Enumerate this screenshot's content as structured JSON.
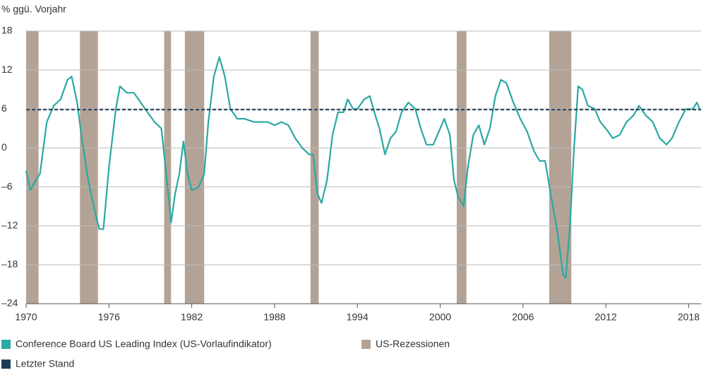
{
  "chart_data": {
    "type": "line",
    "y_axis_label": "% ggü. Vorjahr",
    "xlim": [
      1970,
      2018.9
    ],
    "xticks": [
      1970,
      1976,
      1982,
      1988,
      1994,
      2000,
      2006,
      2012,
      2018
    ],
    "ylim": [
      -24,
      18
    ],
    "yticks": [
      {
        "value": -24,
        "label": "–24"
      },
      {
        "value": -18,
        "label": "–18"
      },
      {
        "value": -12,
        "label": "–12"
      },
      {
        "value": -6,
        "label": "–6"
      },
      0,
      6,
      12,
      18
    ],
    "grid": true,
    "series": [
      {
        "name": "Conference Board US Leading Index (US-Vorlaufindikator)",
        "color": "#2aa8a3",
        "x": [
          1970.0,
          1970.3,
          1970.7,
          1971.0,
          1971.5,
          1972.0,
          1972.5,
          1973.0,
          1973.3,
          1973.7,
          1974.0,
          1974.5,
          1975.0,
          1975.3,
          1975.6,
          1976.0,
          1976.5,
          1976.8,
          1977.3,
          1977.8,
          1978.3,
          1978.8,
          1979.3,
          1979.8,
          1980.2,
          1980.5,
          1980.8,
          1981.1,
          1981.4,
          1981.7,
          1982.0,
          1982.5,
          1982.9,
          1983.2,
          1983.6,
          1984.0,
          1984.4,
          1984.8,
          1985.3,
          1985.8,
          1986.5,
          1987.5,
          1988.0,
          1988.5,
          1989.0,
          1989.5,
          1990.0,
          1990.5,
          1990.8,
          1991.1,
          1991.4,
          1991.8,
          1992.2,
          1992.6,
          1993.0,
          1993.3,
          1993.7,
          1994.0,
          1994.5,
          1994.9,
          1995.3,
          1995.6,
          1996.0,
          1996.4,
          1996.8,
          1997.2,
          1997.7,
          1998.2,
          1998.6,
          1999.0,
          1999.5,
          2000.0,
          2000.3,
          2000.7,
          2001.0,
          2001.3,
          2001.7,
          2002.0,
          2002.4,
          2002.8,
          2003.2,
          2003.6,
          2004.0,
          2004.4,
          2004.8,
          2005.3,
          2005.8,
          2006.3,
          2006.8,
          2007.2,
          2007.6,
          2008.0,
          2008.5,
          2008.9,
          2009.1,
          2009.4,
          2009.7,
          2010.0,
          2010.3,
          2010.7,
          2011.2,
          2011.6,
          2012.0,
          2012.5,
          2013.0,
          2013.5,
          2014.0,
          2014.4,
          2014.9,
          2015.4,
          2015.9,
          2016.4,
          2016.8,
          2017.3,
          2017.8,
          2018.3,
          2018.6,
          2018.8
        ],
        "values": [
          -3.5,
          -6.5,
          -5,
          -4,
          4,
          6.5,
          7.5,
          10.5,
          11,
          7,
          2,
          -5,
          -10,
          -12.5,
          -12.5,
          -3,
          6,
          9.5,
          8.5,
          8.5,
          7,
          5.5,
          4,
          3,
          -5,
          -11.5,
          -7,
          -4,
          1,
          -4,
          -6.5,
          -6,
          -4,
          4,
          11,
          14,
          11,
          6,
          4.5,
          4.5,
          4,
          4,
          3.5,
          4,
          3.5,
          1.5,
          0,
          -1,
          -1,
          -7,
          -8.5,
          -5,
          2,
          5.5,
          5.5,
          7.5,
          6,
          6,
          7.5,
          8,
          5,
          3,
          -1,
          1.5,
          2.5,
          5.5,
          7,
          6,
          3,
          0.5,
          0.5,
          3,
          4.5,
          2,
          -5,
          -7.5,
          -9,
          -3,
          2,
          3.5,
          0.5,
          3,
          8,
          10.5,
          10,
          7,
          4.5,
          2.5,
          -0.5,
          -2,
          -2,
          -7,
          -13,
          -19.5,
          -20,
          -12,
          0,
          9.5,
          9,
          6.5,
          6,
          4,
          3,
          1.5,
          2,
          4,
          5,
          6.5,
          5,
          4,
          1.5,
          0.5,
          1.5,
          4,
          6,
          6,
          7,
          6
        ]
      }
    ],
    "recessions": {
      "name": "US-Rezessionen",
      "color": "#b3a396",
      "periods": [
        [
          1970.0,
          1970.9
        ],
        [
          1973.9,
          1975.2
        ],
        [
          1980.0,
          1980.5
        ],
        [
          1981.5,
          1982.9
        ],
        [
          1990.6,
          1991.2
        ],
        [
          2001.2,
          2001.9
        ],
        [
          2007.9,
          2009.5
        ]
      ]
    },
    "reference_line": {
      "name": "Letzter Stand",
      "color": "#1d3c5a",
      "value": 5.9
    }
  }
}
